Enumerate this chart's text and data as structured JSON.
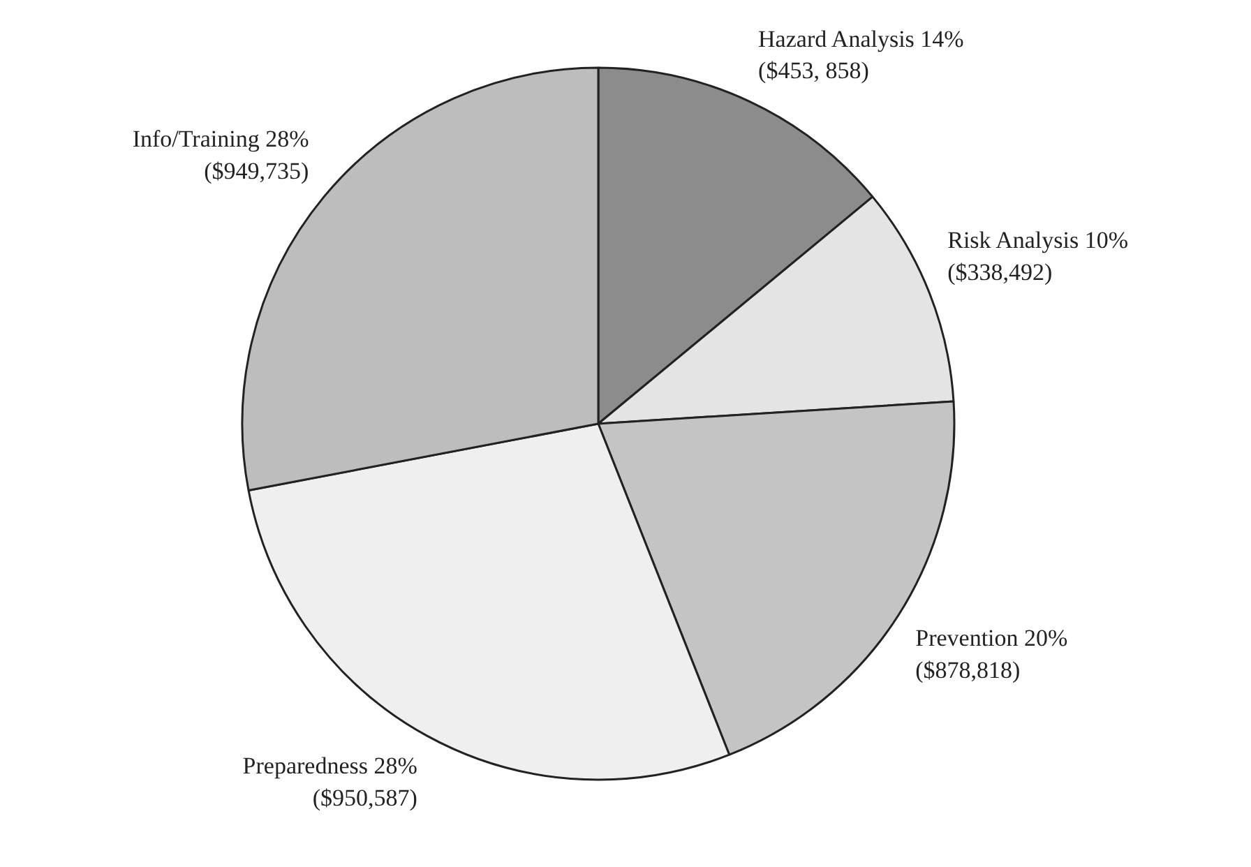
{
  "chart_data": {
    "type": "pie",
    "categories": [
      "Hazard Analysis",
      "Risk Analysis",
      "Prevention",
      "Preparedness",
      "Info/Training"
    ],
    "values": [
      14,
      10,
      20,
      28,
      28
    ],
    "value_labels": [
      "14%\n($453, 858)",
      "10%\n($338,492)",
      "20%\n($878,818)",
      "28%\n($950,587)",
      "28%\n($949,735)"
    ],
    "colors": [
      "#8c8c8c",
      "#e4e4e4",
      "#c4c4c4",
      "#efefef",
      "#bdbdbd"
    ]
  }
}
